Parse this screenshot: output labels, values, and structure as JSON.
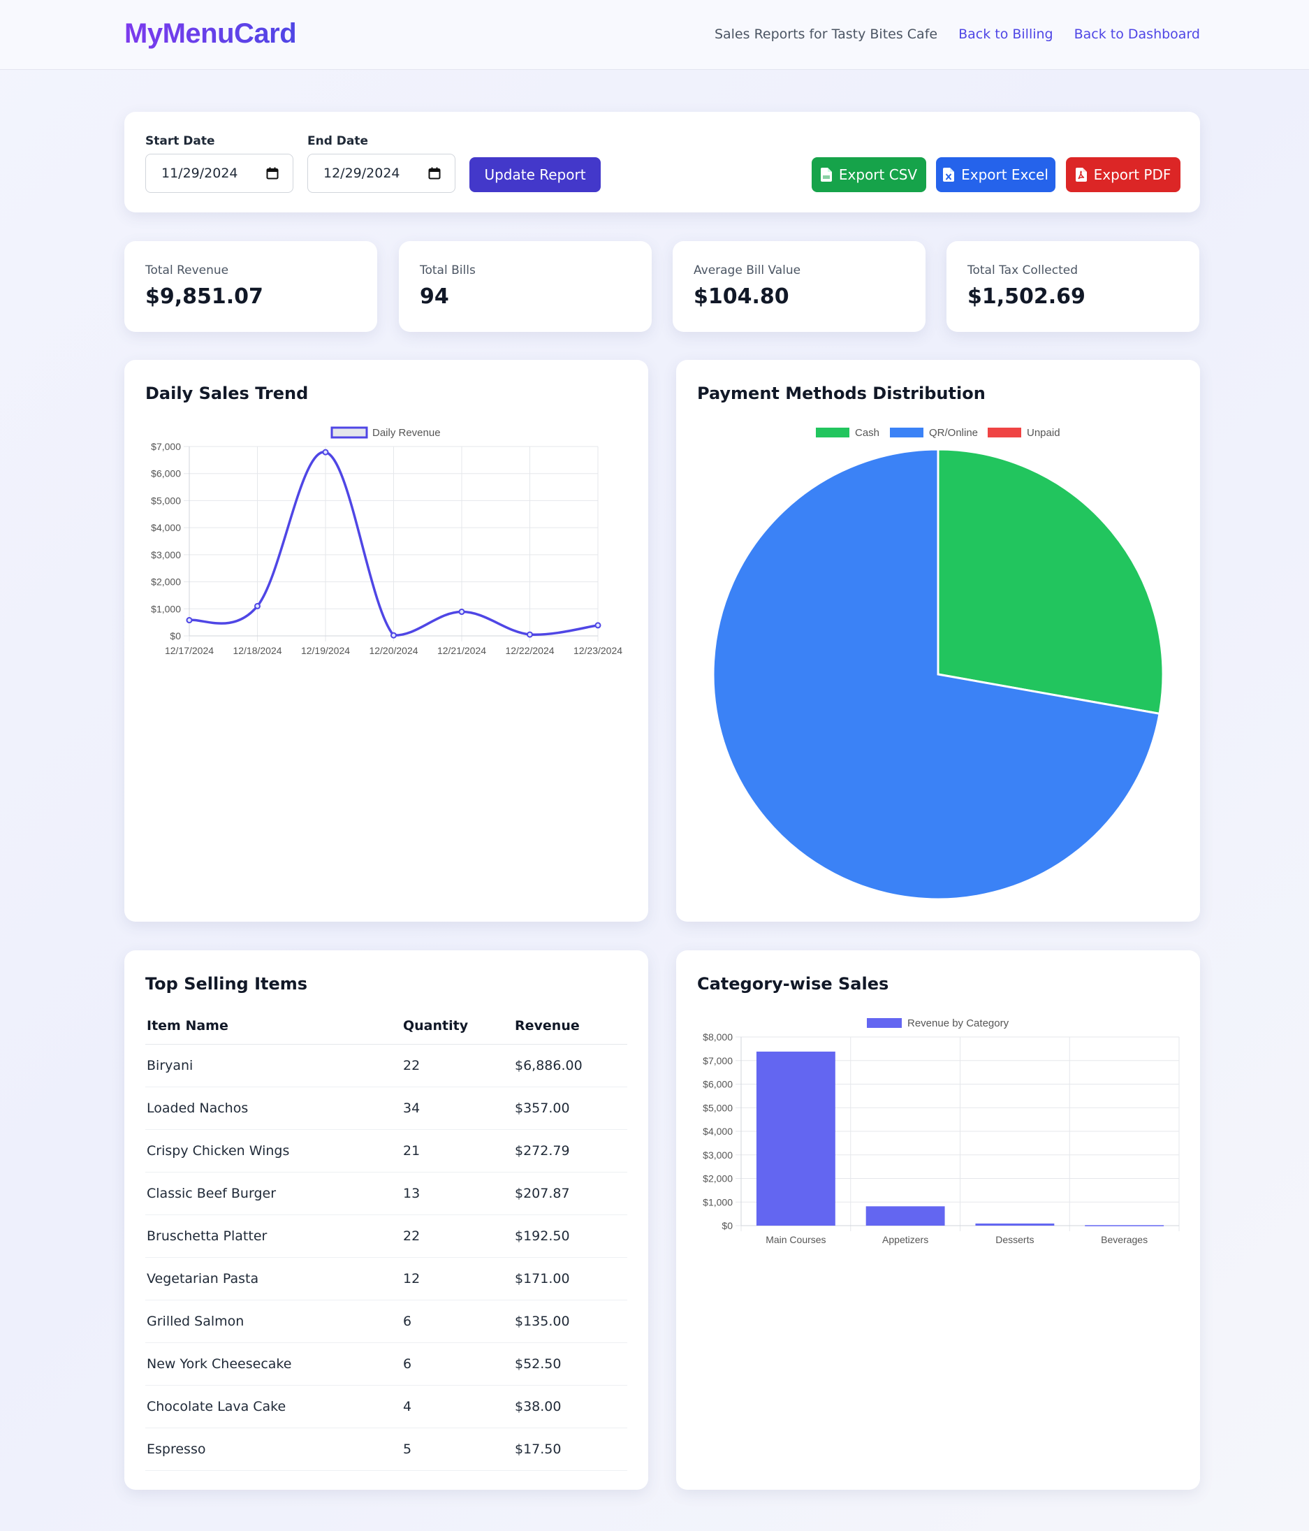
{
  "header": {
    "brand": "MyMenuCard",
    "subtitle": "Sales Reports for Tasty Bites Cafe",
    "links": [
      "Back to Billing",
      "Back to Dashboard"
    ]
  },
  "filters": {
    "start_label": "Start Date",
    "start_value": "11/29/2024",
    "end_label": "End Date",
    "end_value": "12/29/2024",
    "update_label": "Update Report",
    "export_csv": "Export CSV",
    "export_excel": "Export Excel",
    "export_pdf": "Export PDF"
  },
  "stats": [
    {
      "label": "Total Revenue",
      "value": "$9,851.07"
    },
    {
      "label": "Total Bills",
      "value": "94"
    },
    {
      "label": "Average Bill Value",
      "value": "$104.80"
    },
    {
      "label": "Total Tax Collected",
      "value": "$1,502.69"
    }
  ],
  "panels": {
    "daily_title": "Daily Sales Trend",
    "payment_title": "Payment Methods Distribution",
    "top_title": "Top Selling Items",
    "category_title": "Category-wise Sales"
  },
  "top_items": {
    "headers": [
      "Item Name",
      "Quantity",
      "Revenue"
    ],
    "rows": [
      [
        "Biryani",
        "22",
        "$6,886.00"
      ],
      [
        "Loaded Nachos",
        "34",
        "$357.00"
      ],
      [
        "Crispy Chicken Wings",
        "21",
        "$272.79"
      ],
      [
        "Classic Beef Burger",
        "13",
        "$207.87"
      ],
      [
        "Bruschetta Platter",
        "22",
        "$192.50"
      ],
      [
        "Vegetarian Pasta",
        "12",
        "$171.00"
      ],
      [
        "Grilled Salmon",
        "6",
        "$135.00"
      ],
      [
        "New York Cheesecake",
        "6",
        "$52.50"
      ],
      [
        "Chocolate Lava Cake",
        "4",
        "$38.00"
      ],
      [
        "Espresso",
        "5",
        "$17.50"
      ]
    ]
  },
  "colors": {
    "accent": "#4338ca",
    "line": "#4f46e5",
    "bar": "#6366f1",
    "cash": "#22c55e",
    "online": "#3b82f6",
    "unpaid": "#ef4444"
  },
  "chart_data": [
    {
      "type": "line",
      "title": "Daily Sales Trend",
      "legend": [
        "Daily Revenue"
      ],
      "x": [
        "12/17/2024",
        "12/18/2024",
        "12/19/2024",
        "12/20/2024",
        "12/21/2024",
        "12/22/2024",
        "12/23/2024"
      ],
      "series": [
        {
          "name": "Daily Revenue",
          "values": [
            580,
            1100,
            6790,
            20,
            890,
            50,
            390
          ]
        }
      ],
      "ylim": [
        0,
        7000
      ],
      "yticks": [
        "$0",
        "$1,000",
        "$2,000",
        "$3,000",
        "$4,000",
        "$5,000",
        "$6,000",
        "$7,000"
      ],
      "grid": true
    },
    {
      "type": "pie",
      "title": "Payment Methods Distribution",
      "labels": [
        "Cash",
        "QR/Online",
        "Unpaid"
      ],
      "values": [
        27.8,
        72.2,
        0
      ],
      "legend": "top"
    },
    {
      "type": "bar",
      "title": "Category-wise Sales",
      "legend": [
        "Revenue by Category"
      ],
      "categories": [
        "Main Courses",
        "Appetizers",
        "Desserts",
        "Beverages"
      ],
      "values": [
        7380,
        820,
        90,
        20
      ],
      "ylim": [
        0,
        8000
      ],
      "yticks": [
        "$0",
        "$1,000",
        "$2,000",
        "$3,000",
        "$4,000",
        "$5,000",
        "$6,000",
        "$7,000",
        "$8,000"
      ],
      "grid": true
    }
  ]
}
